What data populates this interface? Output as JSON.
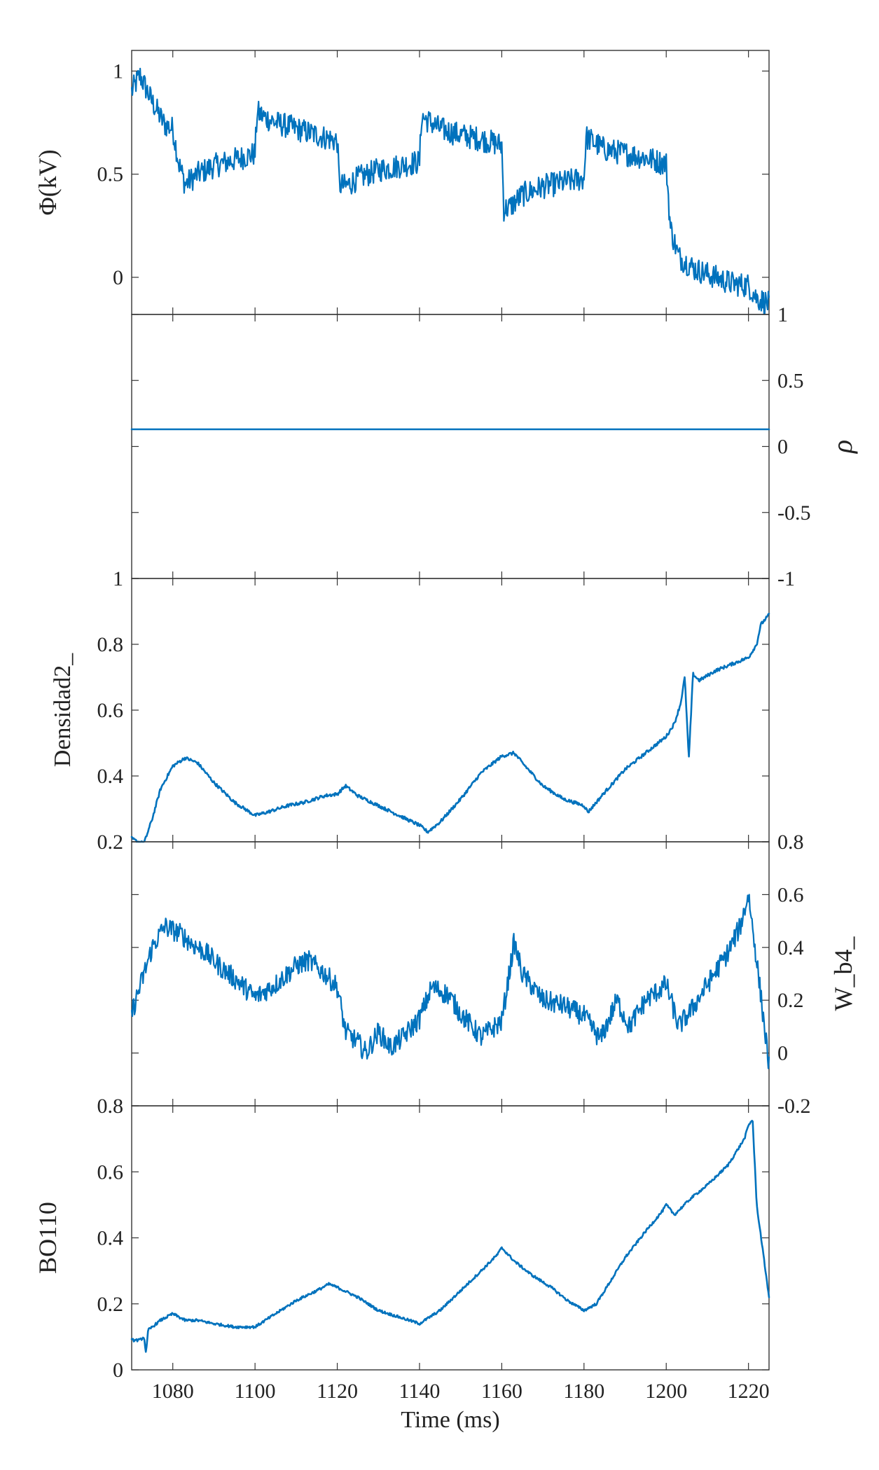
{
  "colors": {
    "series": "#0072BD",
    "axis": "#333333",
    "text": "#222222"
  },
  "chart_data": [
    {
      "type": "line",
      "name": "phi-panel",
      "ylabel": "Φ(kV)",
      "ylabel_side": "left",
      "ylim": [
        -0.18,
        1.1
      ],
      "yticks": [
        0,
        0.5,
        1
      ],
      "ytick_labels": [
        "0",
        "0.5",
        "1"
      ],
      "xlim": [
        1070,
        1225
      ],
      "series": [
        {
          "noise": 0.06,
          "x": [
            1070,
            1072,
            1075,
            1078,
            1080,
            1081.5,
            1083,
            1086,
            1090,
            1095,
            1100,
            1100.5,
            1102,
            1105,
            1110,
            1115,
            1120,
            1120.5,
            1122,
            1125,
            1130,
            1135,
            1140,
            1140.5,
            1142,
            1145,
            1150,
            1155,
            1160,
            1160.5,
            1162,
            1165,
            1170,
            1175,
            1180,
            1180.5,
            1182,
            1185,
            1190,
            1195,
            1200,
            1201,
            1203,
            1207,
            1212,
            1216,
            1220,
            1222,
            1225
          ],
          "y": [
            0.9,
            0.98,
            0.85,
            0.74,
            0.72,
            0.55,
            0.45,
            0.5,
            0.54,
            0.57,
            0.6,
            0.8,
            0.78,
            0.75,
            0.72,
            0.69,
            0.66,
            0.45,
            0.44,
            0.48,
            0.52,
            0.54,
            0.56,
            0.78,
            0.76,
            0.72,
            0.69,
            0.67,
            0.64,
            0.33,
            0.34,
            0.4,
            0.44,
            0.46,
            0.48,
            0.68,
            0.66,
            0.62,
            0.6,
            0.58,
            0.55,
            0.24,
            0.1,
            0.04,
            0.0,
            -0.03,
            -0.04,
            -0.1,
            -0.13
          ]
        }
      ]
    },
    {
      "type": "line",
      "name": "rho-panel",
      "ylabel": "ρ",
      "ylabel_side": "right",
      "ylim": [
        -1,
        1
      ],
      "yticks": [
        -1,
        -0.5,
        0,
        0.5,
        1
      ],
      "ytick_labels": [
        "-1",
        "-0.5",
        "0",
        "0.5",
        "1"
      ],
      "xlim": [
        1070,
        1225
      ],
      "series": [
        {
          "noise": 0,
          "x": [
            1070,
            1225
          ],
          "y": [
            0.13,
            0.13
          ]
        }
      ]
    },
    {
      "type": "line",
      "name": "densidad-panel",
      "ylabel": "Densidad2_",
      "ylabel_side": "left",
      "ylim": [
        0.2,
        1
      ],
      "yticks": [
        0.2,
        0.4,
        0.6,
        0.8,
        1
      ],
      "ytick_labels": [
        "0.2",
        "0.4",
        "0.6",
        "0.8",
        "1"
      ],
      "xlim": [
        1070,
        1225
      ],
      "series": [
        {
          "noise": 0.005,
          "x": [
            1070,
            1071.5,
            1073,
            1075,
            1077,
            1080,
            1083,
            1086,
            1090,
            1095,
            1100,
            1103,
            1108,
            1112,
            1117,
            1120,
            1122,
            1125,
            1130,
            1135,
            1140,
            1142,
            1145,
            1150,
            1155,
            1160,
            1163,
            1165,
            1170,
            1175,
            1180,
            1181,
            1185,
            1190,
            1195,
            1200,
            1202,
            1203.5,
            1204.5,
            1205.5,
            1206.5,
            1208,
            1212,
            1216,
            1220,
            1222,
            1223,
            1225
          ],
          "y": [
            0.21,
            0.2,
            0.195,
            0.27,
            0.36,
            0.43,
            0.455,
            0.44,
            0.38,
            0.32,
            0.28,
            0.29,
            0.31,
            0.32,
            0.34,
            0.345,
            0.37,
            0.34,
            0.31,
            0.28,
            0.25,
            0.23,
            0.26,
            0.33,
            0.41,
            0.46,
            0.47,
            0.44,
            0.37,
            0.33,
            0.31,
            0.29,
            0.35,
            0.42,
            0.47,
            0.52,
            0.56,
            0.62,
            0.7,
            0.45,
            0.71,
            0.69,
            0.72,
            0.74,
            0.76,
            0.8,
            0.86,
            0.89
          ]
        }
      ]
    },
    {
      "type": "line",
      "name": "wb4-panel",
      "ylabel": "W_b4_",
      "ylabel_side": "right",
      "ylim": [
        -0.2,
        0.8
      ],
      "yticks": [
        -0.2,
        0,
        0.2,
        0.4,
        0.6,
        0.8
      ],
      "ytick_labels": [
        "-0.2",
        "0",
        "0.2",
        "0.4",
        "0.6",
        "0.8"
      ],
      "xlim": [
        1070,
        1225
      ],
      "series": [
        {
          "noise": 0.04,
          "x": [
            1070,
            1072,
            1075,
            1078,
            1082,
            1085,
            1088,
            1092,
            1096,
            1100,
            1105,
            1110,
            1113,
            1117,
            1120,
            1122,
            1125,
            1127,
            1130,
            1133,
            1136,
            1140,
            1143,
            1147,
            1150,
            1155,
            1160,
            1163,
            1165,
            1170,
            1175,
            1180,
            1184,
            1188,
            1191,
            1195,
            1200,
            1203,
            1206,
            1210,
            1215,
            1218,
            1220,
            1222,
            1225
          ],
          "y": [
            0.15,
            0.25,
            0.4,
            0.48,
            0.45,
            0.41,
            0.38,
            0.32,
            0.27,
            0.21,
            0.26,
            0.33,
            0.35,
            0.3,
            0.25,
            0.08,
            0.04,
            0.0,
            0.08,
            0.02,
            0.06,
            0.13,
            0.25,
            0.22,
            0.15,
            0.06,
            0.12,
            0.42,
            0.3,
            0.2,
            0.18,
            0.14,
            0.05,
            0.2,
            0.1,
            0.2,
            0.26,
            0.1,
            0.16,
            0.26,
            0.38,
            0.48,
            0.6,
            0.35,
            -0.05
          ]
        }
      ]
    },
    {
      "type": "line",
      "name": "bo110-panel",
      "ylabel": "BO110",
      "ylabel_side": "left",
      "ylim": [
        0,
        0.8
      ],
      "yticks": [
        0,
        0.2,
        0.4,
        0.6,
        0.8
      ],
      "ytick_labels": [
        "0",
        "0.2",
        "0.4",
        "0.6",
        "0.8"
      ],
      "xlabel": "Time (ms)",
      "xlim": [
        1070,
        1225
      ],
      "xticks": [
        1080,
        1100,
        1120,
        1140,
        1160,
        1180,
        1200,
        1220
      ],
      "xtick_labels": [
        "1080",
        "1100",
        "1120",
        "1140",
        "1160",
        "1180",
        "1200",
        "1220"
      ],
      "series": [
        {
          "noise": 0.004,
          "x": [
            1070,
            1072,
            1073,
            1073.5,
            1074,
            1077,
            1080,
            1083,
            1086,
            1090,
            1095,
            1100,
            1105,
            1110,
            1115,
            1118,
            1120,
            1125,
            1130,
            1135,
            1140,
            1145,
            1150,
            1155,
            1159,
            1160,
            1163,
            1167,
            1172,
            1176,
            1180,
            1183,
            1187,
            1190,
            1195,
            1199,
            1200,
            1202,
            1206,
            1210,
            1215,
            1219,
            1220,
            1221,
            1222,
            1225
          ],
          "y": [
            0.09,
            0.09,
            0.1,
            0.05,
            0.12,
            0.15,
            0.17,
            0.15,
            0.15,
            0.14,
            0.13,
            0.13,
            0.17,
            0.21,
            0.24,
            0.26,
            0.25,
            0.22,
            0.18,
            0.16,
            0.14,
            0.18,
            0.24,
            0.3,
            0.35,
            0.37,
            0.33,
            0.29,
            0.25,
            0.21,
            0.18,
            0.2,
            0.28,
            0.34,
            0.42,
            0.48,
            0.5,
            0.47,
            0.52,
            0.56,
            0.62,
            0.7,
            0.74,
            0.76,
            0.5,
            0.22
          ]
        }
      ]
    }
  ]
}
